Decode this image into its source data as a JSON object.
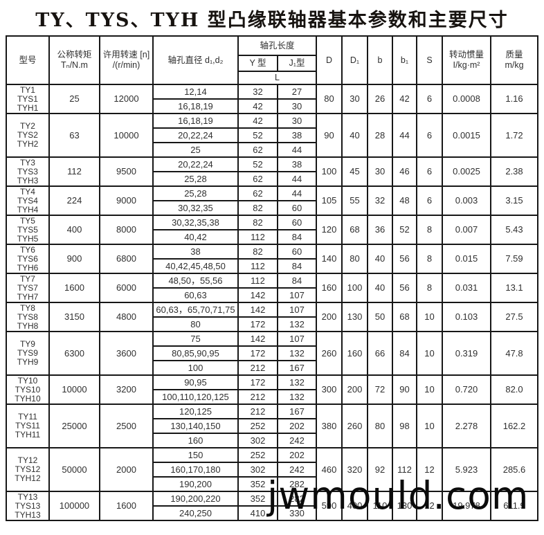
{
  "page": {
    "title": "TY、TYS、TYH 型凸缘联轴器基本参数和主要尺寸"
  },
  "watermark": {
    "text": "jwmould.com"
  },
  "table": {
    "headers": {
      "model": "型号",
      "torque": "公称转矩\nTₙ/N.m",
      "speed": "许用转速 [n]\n/(r/min)",
      "bore_dia": "轴孔直径 d₁,d₂",
      "bore_len": "轴孔长度",
      "y_type": "Y 型",
      "j1_type": "J₁型",
      "L": "L",
      "D": "D",
      "D1": "D₁",
      "b": "b",
      "b1": "b₁",
      "S": "S",
      "inertia": "转动惯量\nI/kg·m²",
      "mass": "质量\nm/kg"
    },
    "rows": [
      {
        "models": [
          "TY1",
          "TYS1",
          "TYH1"
        ],
        "torque": "25",
        "speed": "12000",
        "bores": [
          {
            "d": "12,14",
            "y": "32",
            "j1": "27"
          },
          {
            "d": "16,18,19",
            "y": "42",
            "j1": "30"
          }
        ],
        "D": "80",
        "D1": "30",
        "b": "26",
        "b1": "42",
        "S": "6",
        "inertia": "0.0008",
        "mass": "1.16"
      },
      {
        "models": [
          "TY2",
          "TYS2",
          "TYH2"
        ],
        "torque": "63",
        "speed": "10000",
        "bores": [
          {
            "d": "16,18,19",
            "y": "42",
            "j1": "30"
          },
          {
            "d": "20,22,24",
            "y": "52",
            "j1": "38"
          },
          {
            "d": "25",
            "y": "62",
            "j1": "44"
          }
        ],
        "D": "90",
        "D1": "40",
        "b": "28",
        "b1": "44",
        "S": "6",
        "inertia": "0.0015",
        "mass": "1.72"
      },
      {
        "models": [
          "TY3",
          "TYS3",
          "TYH3"
        ],
        "torque": "112",
        "speed": "9500",
        "bores": [
          {
            "d": "20,22,24",
            "y": "52",
            "j1": "38"
          },
          {
            "d": "25,28",
            "y": "62",
            "j1": "44"
          }
        ],
        "D": "100",
        "D1": "45",
        "b": "30",
        "b1": "46",
        "S": "6",
        "inertia": "0.0025",
        "mass": "2.38"
      },
      {
        "models": [
          "TY4",
          "TYS4",
          "TYH4"
        ],
        "torque": "224",
        "speed": "9000",
        "bores": [
          {
            "d": "25,28",
            "y": "62",
            "j1": "44"
          },
          {
            "d": "30,32,35",
            "y": "82",
            "j1": "60"
          }
        ],
        "D": "105",
        "D1": "55",
        "b": "32",
        "b1": "48",
        "S": "6",
        "inertia": "0.003",
        "mass": "3.15"
      },
      {
        "models": [
          "TY5",
          "TYS5",
          "TYH5"
        ],
        "torque": "400",
        "speed": "8000",
        "bores": [
          {
            "d": "30,32,35,38",
            "y": "82",
            "j1": "60"
          },
          {
            "d": "40,42",
            "y": "112",
            "j1": "84"
          }
        ],
        "D": "120",
        "D1": "68",
        "b": "36",
        "b1": "52",
        "S": "8",
        "inertia": "0.007",
        "mass": "5.43"
      },
      {
        "models": [
          "TY6",
          "TYS6",
          "TYH6"
        ],
        "torque": "900",
        "speed": "6800",
        "bores": [
          {
            "d": "38",
            "y": "82",
            "j1": "60"
          },
          {
            "d": "40,42,45,48,50",
            "y": "112",
            "j1": "84"
          }
        ],
        "D": "140",
        "D1": "80",
        "b": "40",
        "b1": "56",
        "S": "8",
        "inertia": "0.015",
        "mass": "7.59"
      },
      {
        "models": [
          "TY7",
          "TYS7",
          "TYH7"
        ],
        "torque": "1600",
        "speed": "6000",
        "bores": [
          {
            "d": "48,50，55,56",
            "y": "112",
            "j1": "84"
          },
          {
            "d": "60,63",
            "y": "142",
            "j1": "107"
          }
        ],
        "D": "160",
        "D1": "100",
        "b": "40",
        "b1": "56",
        "S": "8",
        "inertia": "0.031",
        "mass": "13.1"
      },
      {
        "models": [
          "TY8",
          "TYS8",
          "TYH8"
        ],
        "torque": "3150",
        "speed": "4800",
        "bores": [
          {
            "d": "60,63，65,70,71,75",
            "y": "142",
            "j1": "107"
          },
          {
            "d": "80",
            "y": "172",
            "j1": "132"
          }
        ],
        "D": "200",
        "D1": "130",
        "b": "50",
        "b1": "68",
        "S": "10",
        "inertia": "0.103",
        "mass": "27.5"
      },
      {
        "models": [
          "TY9",
          "TYS9",
          "TYH9"
        ],
        "torque": "6300",
        "speed": "3600",
        "bores": [
          {
            "d": "75",
            "y": "142",
            "j1": "107"
          },
          {
            "d": "80,85,90,95",
            "y": "172",
            "j1": "132"
          },
          {
            "d": "100",
            "y": "212",
            "j1": "167"
          }
        ],
        "D": "260",
        "D1": "160",
        "b": "66",
        "b1": "84",
        "S": "10",
        "inertia": "0.319",
        "mass": "47.8"
      },
      {
        "models": [
          "TY10",
          "TYS10",
          "TYH10"
        ],
        "torque": "10000",
        "speed": "3200",
        "bores": [
          {
            "d": "90,95",
            "y": "172",
            "j1": "132"
          },
          {
            "d": "100,110,120,125",
            "y": "212",
            "j1": "132"
          }
        ],
        "D": "300",
        "D1": "200",
        "b": "72",
        "b1": "90",
        "S": "10",
        "inertia": "0.720",
        "mass": "82.0"
      },
      {
        "models": [
          "TY11",
          "TYS11",
          "TYH11"
        ],
        "torque": "25000",
        "speed": "2500",
        "bores": [
          {
            "d": "120,125",
            "y": "212",
            "j1": "167"
          },
          {
            "d": "130,140,150",
            "y": "252",
            "j1": "202"
          },
          {
            "d": "160",
            "y": "302",
            "j1": "242"
          }
        ],
        "D": "380",
        "D1": "260",
        "b": "80",
        "b1": "98",
        "S": "10",
        "inertia": "2.278",
        "mass": "162.2"
      },
      {
        "models": [
          "TY12",
          "TYS12",
          "TYH12"
        ],
        "torque": "50000",
        "speed": "2000",
        "bores": [
          {
            "d": "150",
            "y": "252",
            "j1": "202"
          },
          {
            "d": "160,170,180",
            "y": "302",
            "j1": "242"
          },
          {
            "d": "190,200",
            "y": "352",
            "j1": "282"
          }
        ],
        "D": "460",
        "D1": "320",
        "b": "92",
        "b1": "112",
        "S": "12",
        "inertia": "5.923",
        "mass": "285.6"
      },
      {
        "models": [
          "TY13",
          "TYS13",
          "TYH13"
        ],
        "torque": "100000",
        "speed": "1600",
        "bores": [
          {
            "d": "190,200,220",
            "y": "352",
            "j1": "282"
          },
          {
            "d": "240,250",
            "y": "410",
            "j1": "330"
          }
        ],
        "D": "590",
        "D1": "400",
        "b": "110",
        "b1": "130",
        "S": "12",
        "inertia": "19.978",
        "mass": "611.9"
      }
    ]
  }
}
